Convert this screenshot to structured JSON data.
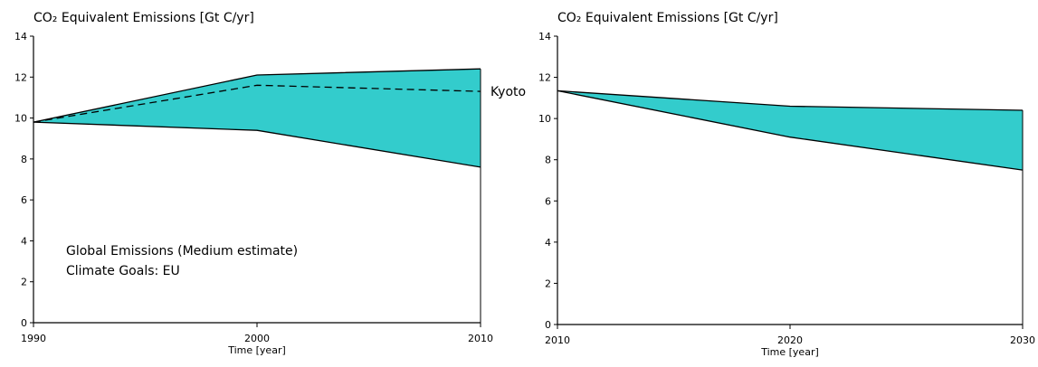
{
  "chart_data": [
    {
      "type": "area",
      "ylabel": "CO₂ Equivalent Emissions [Gt C/yr]",
      "xlabel": "Time [year]",
      "x": [
        1990,
        2000,
        2010
      ],
      "xticks": [
        "1990",
        "2000",
        "2010"
      ],
      "yticks": [
        "0",
        "2",
        "4",
        "6",
        "8",
        "10",
        "12",
        "14"
      ],
      "ylim": [
        0,
        14
      ],
      "xlim": [
        1990,
        2010
      ],
      "band": {
        "upper": [
          9.8,
          12.1,
          12.4
        ],
        "lower": [
          9.8,
          9.4,
          7.6
        ],
        "color": "#33CCCC"
      },
      "dashed_series": {
        "x": [
          1990,
          2000,
          2010
        ],
        "y": [
          9.8,
          11.6,
          11.3
        ]
      },
      "annotations": [
        "Global Emissions (Medium estimate)",
        "Climate Goals: EU"
      ],
      "dashed_label": "Kyoto"
    },
    {
      "type": "area",
      "ylabel": "CO₂ Equivalent Emissions [Gt C/yr]",
      "xlabel": "Time [year]",
      "x": [
        2010,
        2020,
        2030
      ],
      "xticks": [
        "2010",
        "2020",
        "2030"
      ],
      "yticks": [
        "0",
        "2",
        "4",
        "6",
        "8",
        "10",
        "12",
        "14"
      ],
      "ylim": [
        0,
        14
      ],
      "xlim": [
        2010,
        2030
      ],
      "band": {
        "upper": [
          11.35,
          10.6,
          10.4
        ],
        "lower": [
          11.35,
          9.1,
          7.5
        ],
        "color": "#33CCCC"
      }
    }
  ]
}
